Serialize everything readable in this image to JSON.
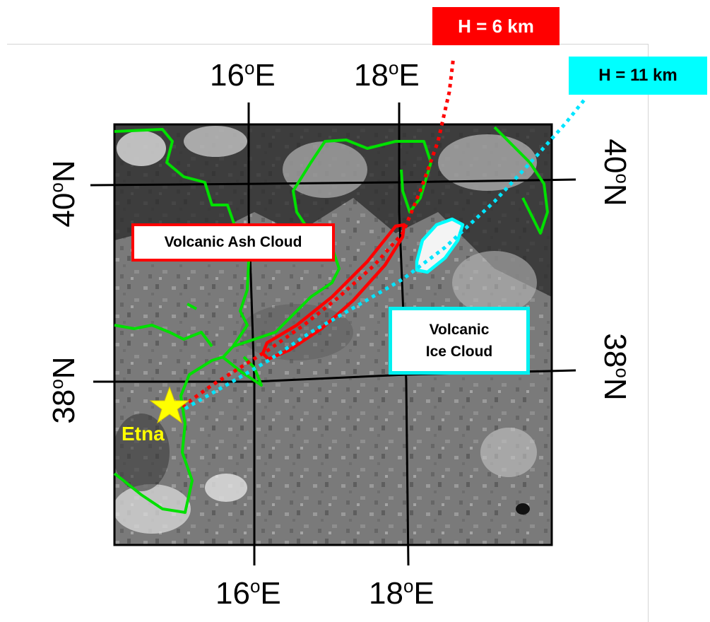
{
  "labels": {
    "lon_16_top": "16",
    "lon_18_top": "18",
    "lon_16_bottom": "16",
    "lon_18_bottom": "18",
    "lat_40_left": "40",
    "lat_38_left": "38",
    "lat_40_right": "40",
    "lat_38_right": "38",
    "east": "E",
    "north": "N",
    "degree": "o"
  },
  "annotations": {
    "height_6": "H = 6 km",
    "height_11": "H = 11 km",
    "ash_cloud": "Volcanic Ash Cloud",
    "ice_cloud": "Volcanic Ice Cloud",
    "volcano": "Etna"
  },
  "colors": {
    "ash_outline": "#ff0000",
    "ice_outline": "#00ffff",
    "coastline": "#00e000",
    "volcano_marker": "#ffff00",
    "grid": "#000000"
  },
  "icons": {
    "volcano_marker": "star-icon"
  }
}
